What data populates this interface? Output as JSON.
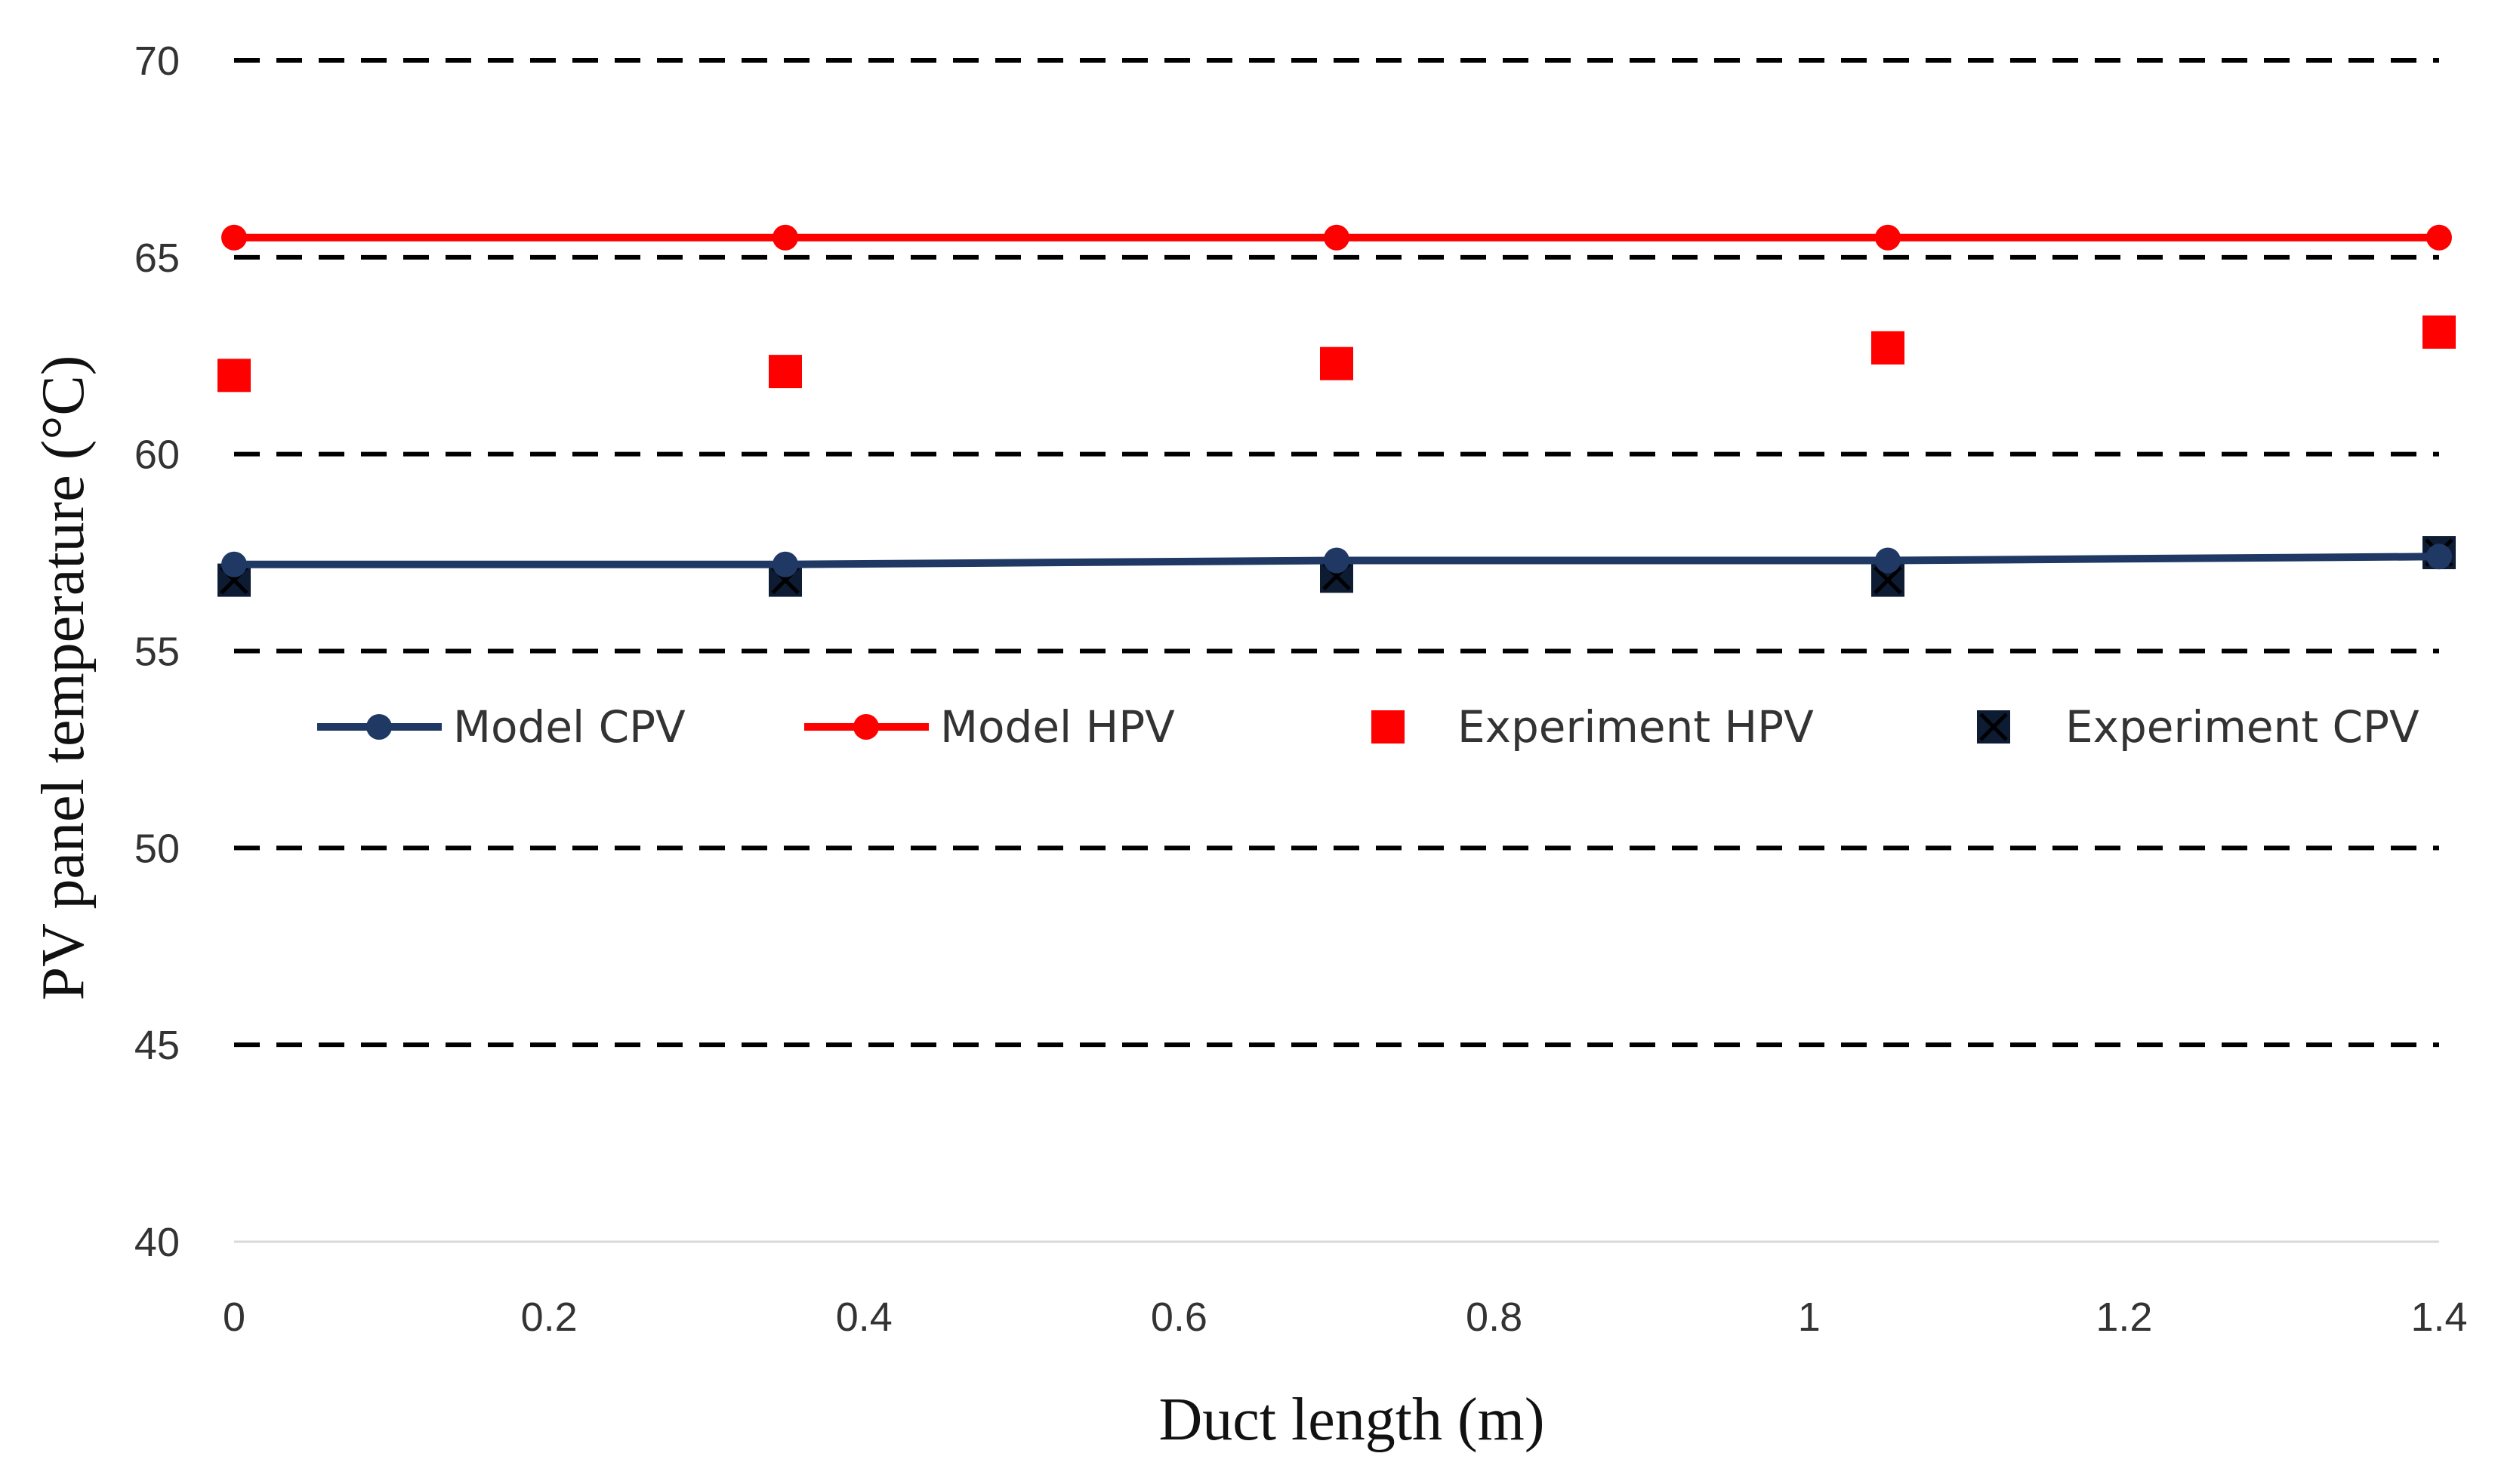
{
  "chart_data": {
    "type": "scatter",
    "title": "",
    "xlabel": "Duct length (m)",
    "ylabel": "PV panel temperature (°C)",
    "xlim": [
      0,
      1.4
    ],
    "ylim": [
      40,
      70
    ],
    "xticks": [
      "0",
      "0.2",
      "0.4",
      "0.6",
      "0.8",
      "1",
      "1.2",
      "1.4"
    ],
    "yticks": [
      "40",
      "45",
      "50",
      "55",
      "60",
      "65",
      "70"
    ],
    "grid": "horizontal dashed",
    "legend_position": "middle",
    "x": [
      0,
      0.35,
      0.7,
      1.05,
      1.4
    ],
    "series": [
      {
        "name": "Model CPV",
        "kind": "line-circle",
        "color": "#1f3864",
        "values": [
          57.2,
          57.2,
          57.3,
          57.3,
          57.4
        ]
      },
      {
        "name": "Model  HPV",
        "kind": "line-circle",
        "color": "#ff0000",
        "values": [
          65.5,
          65.5,
          65.5,
          65.5,
          65.5
        ]
      },
      {
        "name": "Experiment HPV",
        "kind": "square",
        "color": "#ff0000",
        "values": [
          62.0,
          62.1,
          62.3,
          62.7,
          63.1
        ]
      },
      {
        "name": "Experiment CPV",
        "kind": "square-x",
        "color": "#0d1b33",
        "values": [
          56.8,
          56.8,
          56.9,
          56.8,
          57.5
        ]
      }
    ]
  }
}
